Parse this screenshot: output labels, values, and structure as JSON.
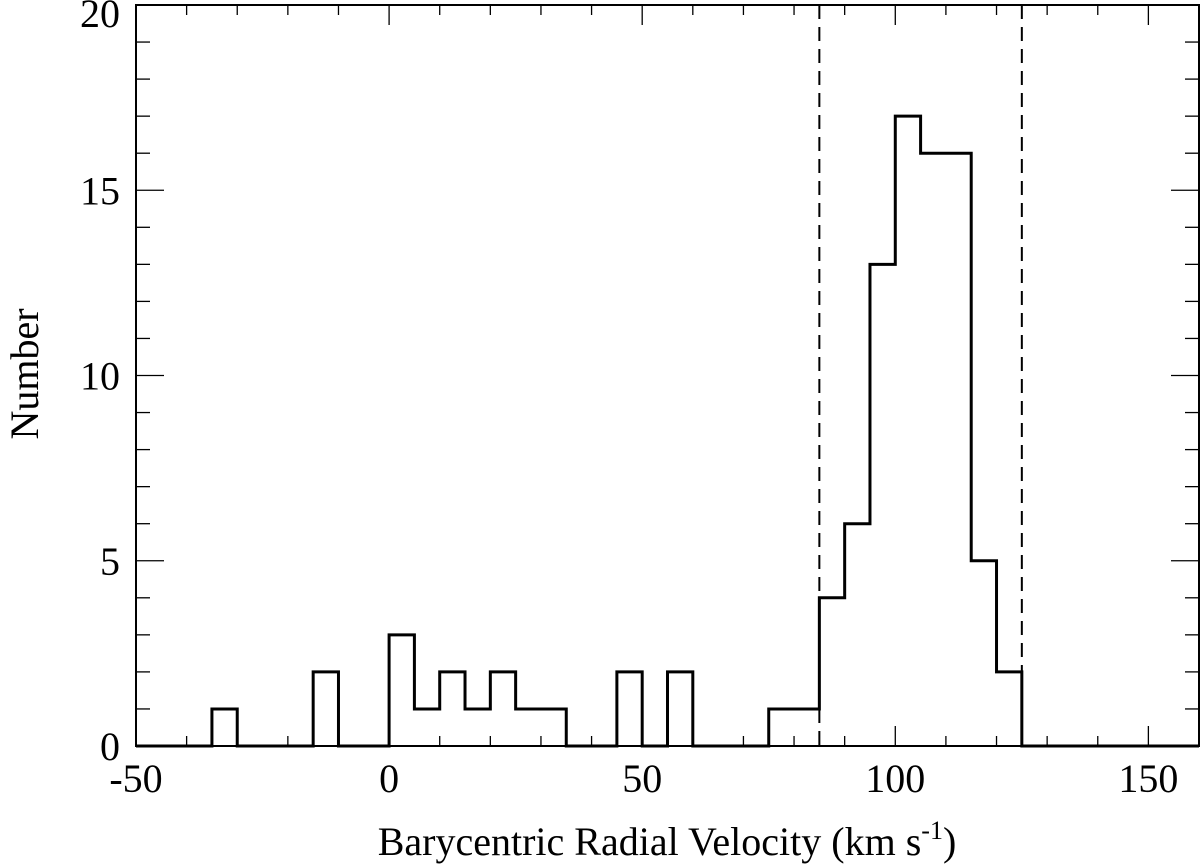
{
  "chart_data": {
    "type": "histogram",
    "xlabel_main": "Barycentric Radial Velocity (km s",
    "xlabel_sup": "-1",
    "xlabel_close": ")",
    "ylabel": "Number",
    "xlim": [
      -50,
      160
    ],
    "ylim": [
      0,
      20
    ],
    "x_ticks": [
      -50,
      0,
      50,
      100,
      150
    ],
    "x_tick_labels": [
      "-50",
      "0",
      "50",
      "100",
      "150"
    ],
    "x_minor_step": 10,
    "y_ticks": [
      0,
      5,
      10,
      15,
      20
    ],
    "y_tick_labels": [
      "0",
      "5",
      "10",
      "15",
      "20"
    ],
    "y_minor_step": 1,
    "grid": false,
    "bin_width": 5,
    "bin_edges_start": -50,
    "counts": [
      0,
      0,
      0,
      1,
      0,
      0,
      0,
      2,
      0,
      0,
      3,
      1,
      2,
      1,
      2,
      1,
      1,
      0,
      0,
      2,
      0,
      2,
      0,
      0,
      0,
      1,
      1,
      4,
      6,
      13,
      17,
      16,
      16,
      5,
      2,
      0,
      0,
      0,
      0,
      0,
      0,
      0
    ],
    "reference_lines_x": [
      85,
      125
    ],
    "reference_line_style": "dashed"
  }
}
